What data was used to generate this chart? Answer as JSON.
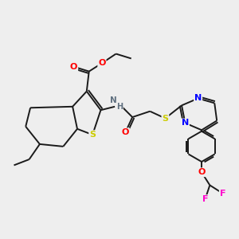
{
  "background_color": "#eeeeee",
  "bond_color": "#1a1a1a",
  "line_width": 1.4,
  "atom_colors": {
    "S": "#cccc00",
    "N": "#0000ff",
    "O": "#ff0000",
    "F": "#ff00cc",
    "C": "#1a1a1a",
    "H": "#607080"
  },
  "figsize": [
    3.0,
    3.0
  ],
  "dpi": 100
}
